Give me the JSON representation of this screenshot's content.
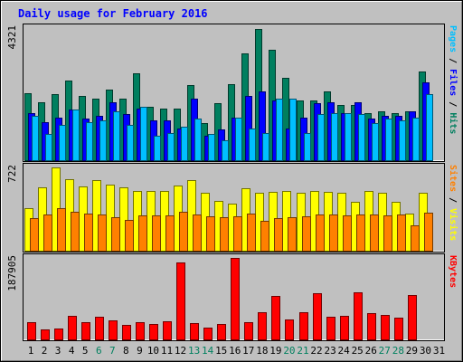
{
  "chart_data": {
    "type": "bar",
    "title": "Daily usage for February 2016",
    "days": [
      "1",
      "2",
      "3",
      "4",
      "5",
      "6",
      "7",
      "8",
      "9",
      "10",
      "11",
      "12",
      "13",
      "14",
      "15",
      "16",
      "17",
      "18",
      "19",
      "20",
      "21",
      "22",
      "23",
      "24",
      "25",
      "26",
      "27",
      "28",
      "29",
      "30",
      "31"
    ],
    "weekend_days": [
      "6",
      "7",
      "13",
      "14",
      "20",
      "21",
      "27",
      "28"
    ],
    "panels": [
      {
        "name": "hits-files-pages",
        "max_label": "4321",
        "ylim": [
          0,
          4321
        ],
        "legend": [
          "Pages",
          "Files",
          "Hits"
        ],
        "series": [
          {
            "name": "Hits",
            "color": "#007f5f",
            "values": [
              2200,
              1900,
              2150,
              2600,
              2100,
              2000,
              2300,
              2000,
              2850,
              1750,
              1700,
              1700,
              2450,
              1200,
              1850,
              2500,
              3500,
              4300,
              3600,
              2700,
              1950,
              1950,
              2250,
              1800,
              1800,
              1550,
              1600,
              1550,
              1600,
              2900,
              null
            ]
          },
          {
            "name": "Files",
            "color": "#0000ff",
            "values": [
              1550,
              1250,
              1400,
              1650,
              1350,
              1450,
              1900,
              1500,
              1700,
              1300,
              1300,
              1050,
              2000,
              800,
              1000,
              1400,
              2100,
              2250,
              1950,
              1050,
              1400,
              1850,
              1900,
              1550,
              1900,
              1350,
              1450,
              1450,
              1600,
              2550,
              null
            ]
          },
          {
            "name": "Pages",
            "color": "#00bfff",
            "values": [
              1450,
              850,
              1150,
              1650,
              1250,
              1300,
              1600,
              1150,
              1750,
              800,
              900,
              1100,
              1350,
              850,
              650,
              1400,
              1050,
              900,
              2000,
              2000,
              900,
              1500,
              1550,
              1550,
              1500,
              1200,
              1350,
              1300,
              1400,
              2150,
              null
            ]
          }
        ]
      },
      {
        "name": "visits-sites",
        "max_label": "722",
        "ylim": [
          0,
          722
        ],
        "legend": [
          "Sites",
          "Visits"
        ],
        "series": [
          {
            "name": "Visits",
            "color": "#ffff00",
            "values": [
              370,
              550,
              722,
              620,
              560,
              615,
              570,
              550,
              520,
              520,
              520,
              565,
              615,
              500,
              430,
              410,
              540,
              500,
              510,
              520,
              500,
              520,
              510,
              500,
              420,
              520,
              500,
              420,
              320,
              500,
              null
            ]
          },
          {
            "name": "Sites",
            "color": "#ff8000",
            "values": [
              280,
              310,
              365,
              340,
              320,
              310,
              290,
              270,
              305,
              305,
              305,
              340,
              310,
              300,
              290,
              300,
              320,
              260,
              285,
              290,
              300,
              315,
              310,
              305,
              310,
              310,
              305,
              310,
              220,
              330,
              null
            ]
          }
        ]
      },
      {
        "name": "kbytes",
        "max_label": "187905",
        "ylim": [
          0,
          187905
        ],
        "legend": [
          "KBytes"
        ],
        "series": [
          {
            "name": "KBytes",
            "color": "#ff0000",
            "values": [
              40000,
              24000,
              25000,
              55000,
              39000,
              53000,
              44000,
              34000,
              40000,
              35000,
              42000,
              178000,
              37000,
              27000,
              36000,
              187905,
              39000,
              62000,
              101000,
              45000,
              63000,
              106000,
              53000,
              54000,
              109000,
              61000,
              56000,
              51000,
              103000,
              null,
              null
            ]
          }
        ]
      }
    ]
  }
}
